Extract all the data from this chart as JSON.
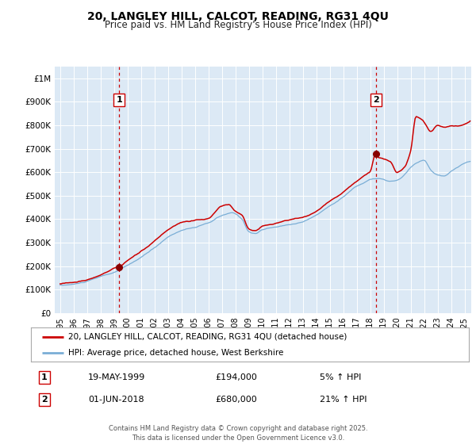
{
  "title": "20, LANGLEY HILL, CALCOT, READING, RG31 4QU",
  "subtitle": "Price paid vs. HM Land Registry's House Price Index (HPI)",
  "bg_color": "#dce9f5",
  "fig_bg_color": "#ffffff",
  "red_line_color": "#cc0000",
  "blue_line_color": "#7aaed6",
  "red_dot_color": "#880000",
  "vline_color": "#cc0000",
  "grid_color": "#ffffff",
  "legend_label_red": "20, LANGLEY HILL, CALCOT, READING, RG31 4QU (detached house)",
  "legend_label_blue": "HPI: Average price, detached house, West Berkshire",
  "annotation1_date": 1999.38,
  "annotation1_value": 194000,
  "annotation1_text_date": "19-MAY-1999",
  "annotation1_text_price": "£194,000",
  "annotation1_text_pct": "5% ↑ HPI",
  "annotation2_date": 2018.42,
  "annotation2_value": 680000,
  "annotation2_text_date": "01-JUN-2018",
  "annotation2_text_price": "£680,000",
  "annotation2_text_pct": "21% ↑ HPI",
  "footer": "Contains HM Land Registry data © Crown copyright and database right 2025.\nThis data is licensed under the Open Government Licence v3.0.",
  "ylim_min": 0,
  "ylim_max": 1050000,
  "xlim_min": 1994.6,
  "xlim_max": 2025.5,
  "yticks": [
    0,
    100000,
    200000,
    300000,
    400000,
    500000,
    600000,
    700000,
    800000,
    900000,
    1000000
  ],
  "ytick_labels": [
    "£0",
    "£100K",
    "£200K",
    "£300K",
    "£400K",
    "£500K",
    "£600K",
    "£700K",
    "£800K",
    "£900K",
    "£1M"
  ],
  "xticks": [
    1995,
    1996,
    1997,
    1998,
    1999,
    2000,
    2001,
    2002,
    2003,
    2004,
    2005,
    2006,
    2007,
    2008,
    2009,
    2010,
    2011,
    2012,
    2013,
    2014,
    2015,
    2016,
    2017,
    2018,
    2019,
    2020,
    2021,
    2022,
    2023,
    2024,
    2025
  ]
}
